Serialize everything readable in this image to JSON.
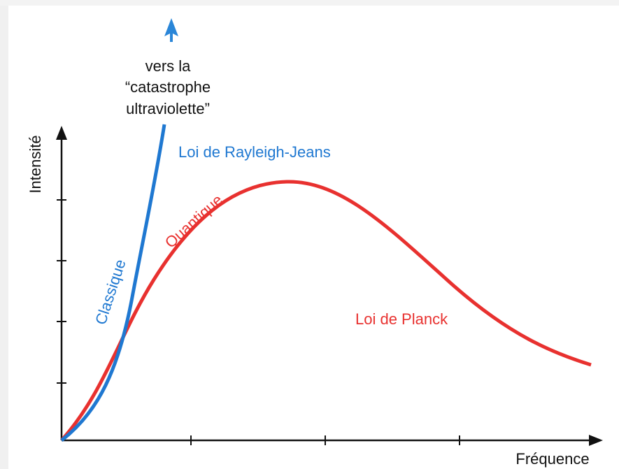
{
  "axes": {
    "y_label": "Intensité",
    "x_label": "Fréquence"
  },
  "curves": {
    "classical": {
      "label": "Classique",
      "name": "Loi de Rayleigh-Jeans"
    },
    "quantum": {
      "label": "Quantique",
      "name": "Loi de Planck"
    }
  },
  "annotation": [
    "vers la",
    "“catastrophe",
    "ultraviolette”"
  ]
}
